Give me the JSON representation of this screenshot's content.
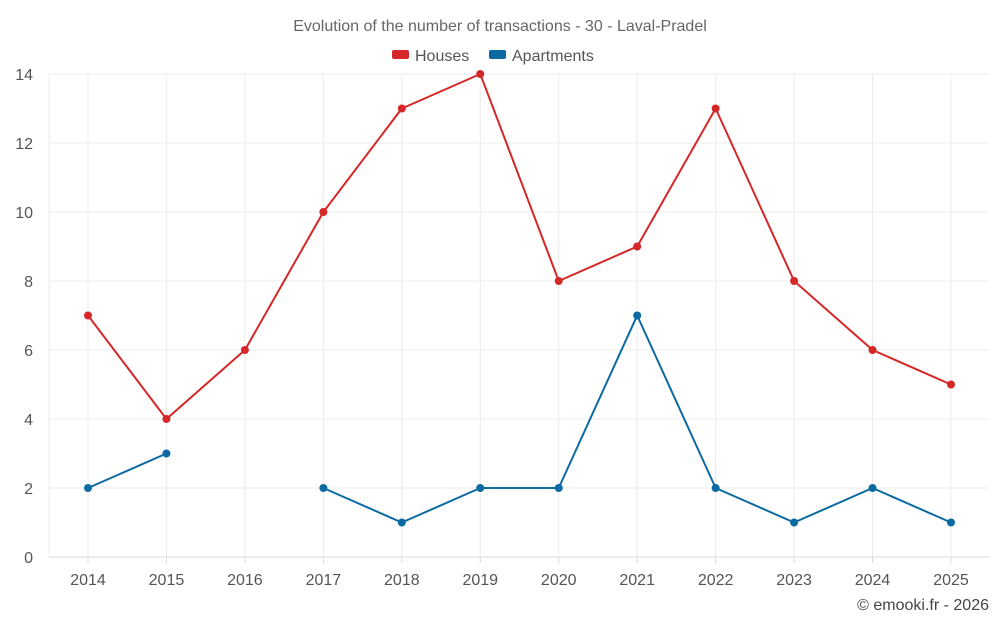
{
  "chart_data": {
    "type": "line",
    "title": "Evolution of the number of transactions - 30 - Laval-Pradel",
    "categories": [
      "2014",
      "2015",
      "2016",
      "2017",
      "2018",
      "2019",
      "2020",
      "2021",
      "2022",
      "2023",
      "2024",
      "2025"
    ],
    "ylim": [
      0,
      14
    ],
    "yticks": [
      0,
      2,
      4,
      6,
      8,
      10,
      12,
      14
    ],
    "grid": true,
    "legend_position": "top-center",
    "series": [
      {
        "name": "Houses",
        "color": "#d62728",
        "values": [
          7,
          4,
          6,
          10,
          13,
          14,
          8,
          9,
          13,
          8,
          6,
          5
        ]
      },
      {
        "name": "Apartments",
        "color": "#0b6aa2",
        "values": [
          2,
          3,
          null,
          2,
          1,
          2,
          2,
          7,
          2,
          1,
          2,
          1
        ]
      }
    ],
    "credit": "© emooki.fr - 2026"
  }
}
